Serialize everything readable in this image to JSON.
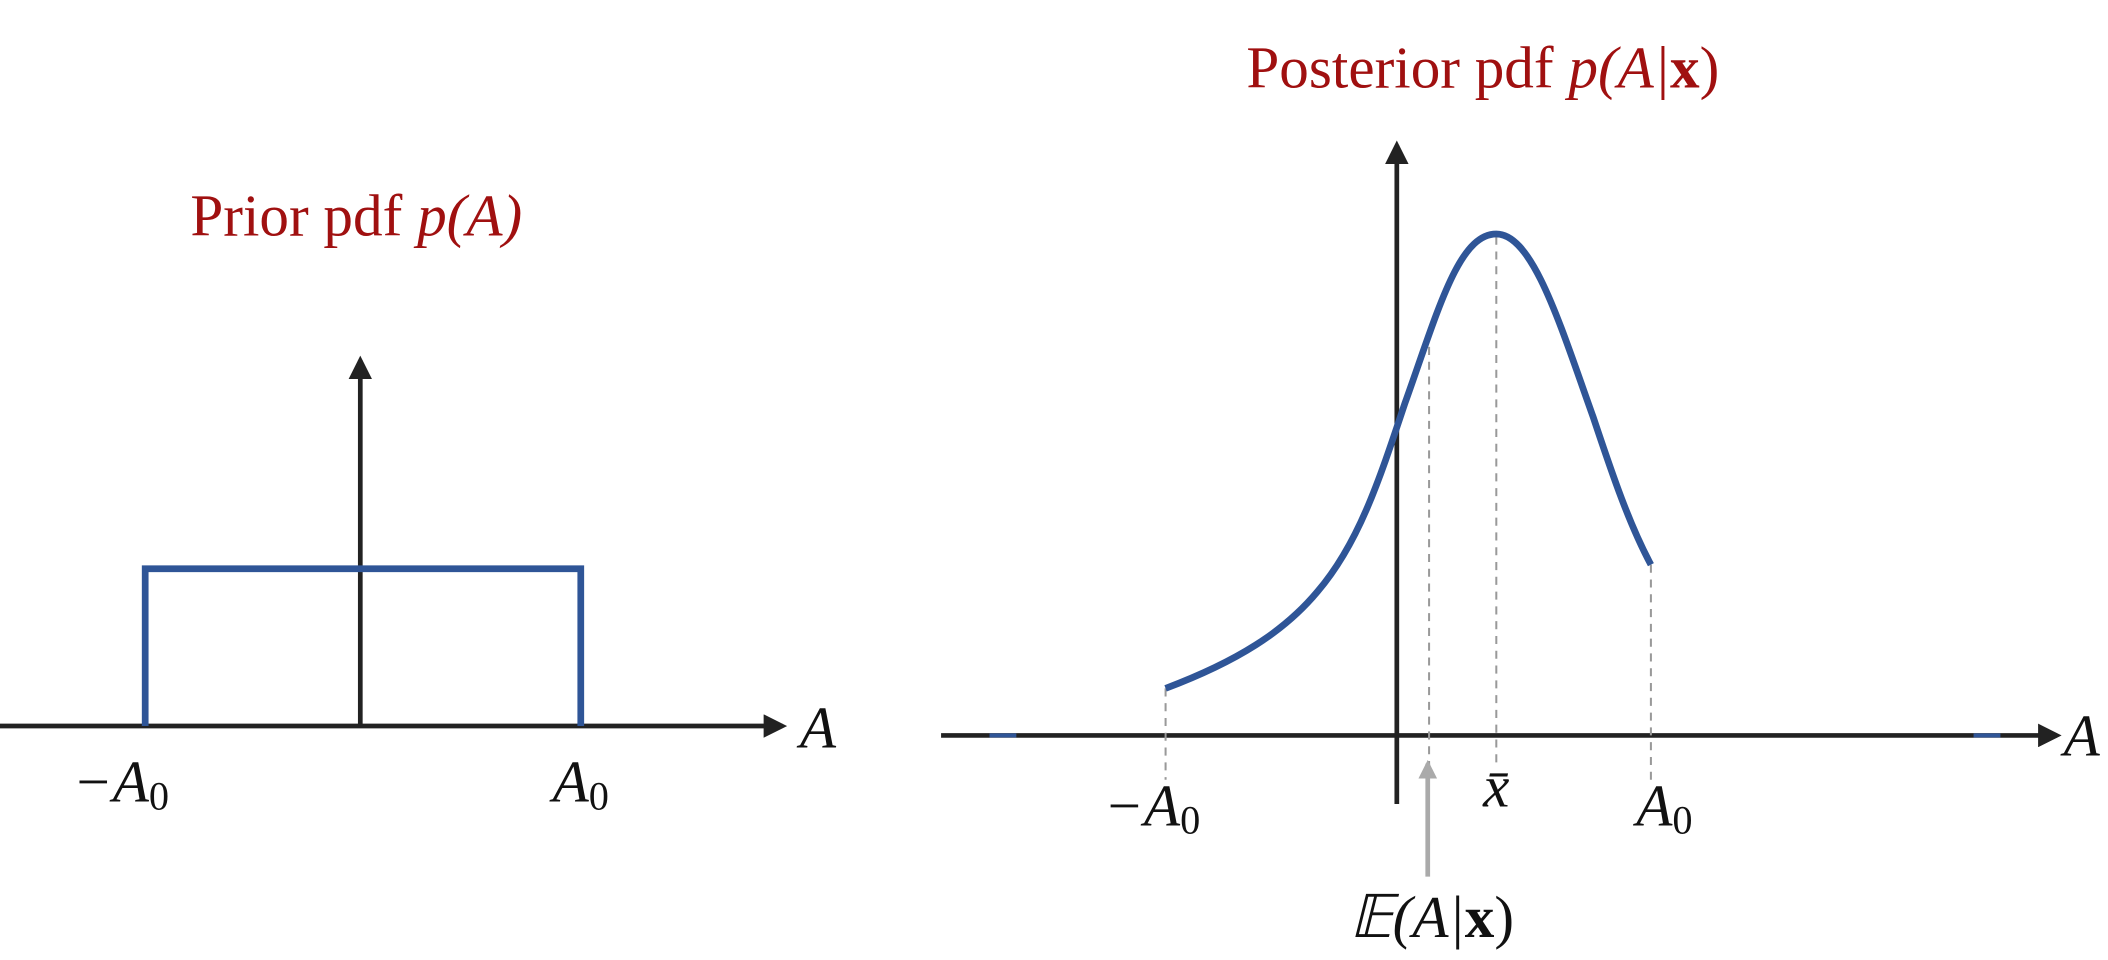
{
  "prior": {
    "title": "Prior pdf",
    "title_math": "p(A)",
    "axis_label": "A",
    "left_label": {
      "main": "−A",
      "sub": "0"
    },
    "right_label": {
      "main": "A",
      "sub": "0"
    }
  },
  "posterior": {
    "title": "Posterior pdf",
    "title_math_pre": "p(A|",
    "title_math_bold": "x",
    "title_math_post": ")",
    "axis_label": "A",
    "left_label": {
      "main": "−A",
      "sub": "0"
    },
    "mean_label": "x̄",
    "right_label": {
      "main": "A",
      "sub": "0"
    },
    "expectation": {
      "pre": "𝔼(A|",
      "bold": "x",
      "post": ")"
    }
  }
}
